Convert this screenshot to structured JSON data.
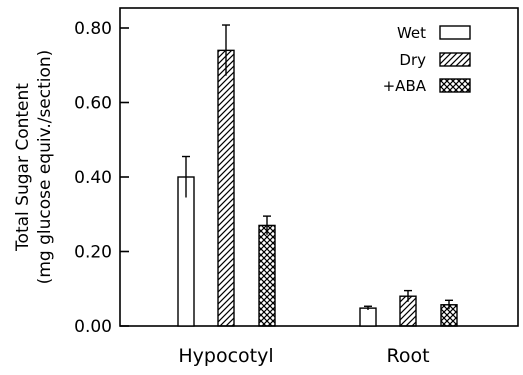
{
  "chart_data": {
    "type": "bar",
    "categories": [
      "Hypocotyl",
      "Root"
    ],
    "series": [
      {
        "name": "Wet",
        "values": [
          0.4,
          0.048
        ],
        "errors": [
          0.055,
          0.005
        ],
        "pattern": "open"
      },
      {
        "name": "Dry",
        "values": [
          0.74,
          0.08
        ],
        "errors": [
          0.068,
          0.015
        ],
        "pattern": "hatch"
      },
      {
        "name": "+ABA",
        "values": [
          0.27,
          0.057
        ],
        "errors": [
          0.025,
          0.012
        ],
        "pattern": "crosshatch"
      }
    ],
    "ylabel": "Total Sugar Content",
    "ylabel_sub": "(mg glucose equiv./section)",
    "ylim": [
      0,
      0.85
    ],
    "yticks": [
      0.0,
      0.2,
      0.4,
      0.6,
      0.8
    ],
    "ytick_labels": [
      "0.00",
      "0.20",
      "0.40",
      "0.60",
      "0.80"
    ],
    "legend_position": "top-right",
    "grid": false,
    "colors": {
      "fill": "#ffffff",
      "stroke": "#000000"
    }
  }
}
